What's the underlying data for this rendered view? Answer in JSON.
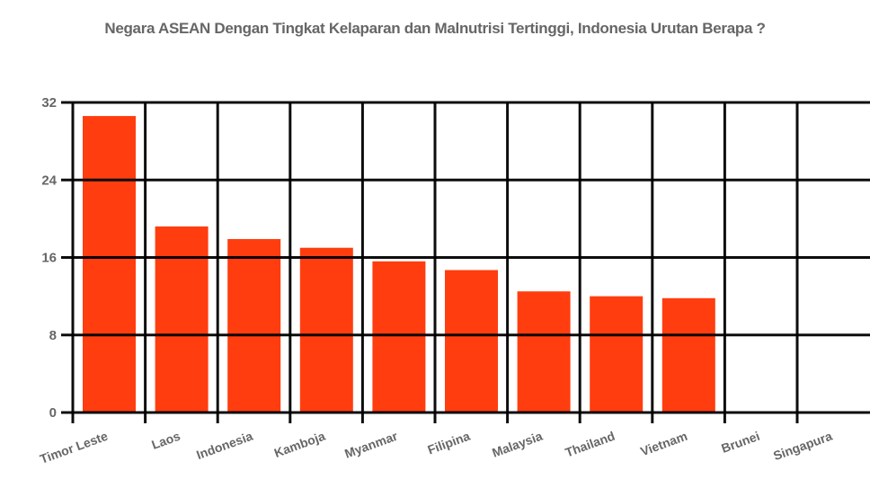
{
  "chart_data": {
    "type": "bar",
    "title": "Negara ASEAN Dengan Tingkat Kelaparan dan Malnutrisi Tertinggi, Indonesia Urutan Berapa ?",
    "xlabel": "",
    "ylabel": "",
    "categories": [
      "Timor Leste",
      "Laos",
      "Indonesia",
      "Kamboja",
      "Myanmar",
      "Filipina",
      "Malaysia",
      "Thailand",
      "Vietnam",
      "Brunei",
      "Singapura"
    ],
    "values": [
      30.6,
      19.2,
      17.9,
      17.0,
      15.6,
      14.7,
      12.5,
      12.0,
      11.8,
      0,
      0
    ],
    "ylim": [
      0,
      32
    ],
    "yticks": [
      0,
      8,
      16,
      24,
      32
    ],
    "grid": true,
    "legend": null,
    "colors": {
      "bar": "#ff3d0f",
      "grid": "#000000",
      "text": "#666666"
    }
  }
}
